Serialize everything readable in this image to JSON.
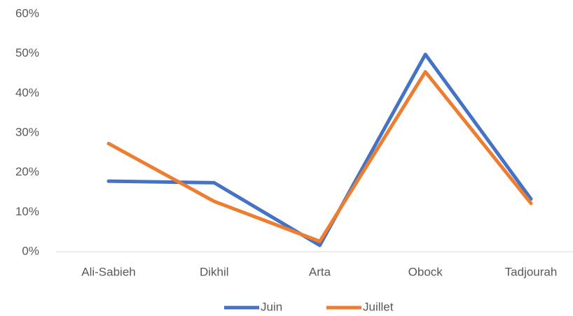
{
  "chart_data": {
    "type": "line",
    "categories": [
      "Ali-Sabieh",
      "Dikhil",
      "Arta",
      "Obock",
      "Tadjourah"
    ],
    "series": [
      {
        "name": "Juin",
        "color": "#4472c4",
        "values": [
          17.8,
          17.4,
          1.6,
          49.8,
          13.3
        ]
      },
      {
        "name": "Juillet",
        "color": "#ed7d31",
        "values": [
          27.3,
          12.7,
          2.6,
          45.4,
          12.2
        ]
      }
    ],
    "ylim": [
      0,
      60
    ],
    "yticks": [
      {
        "value": 0,
        "label": "0%"
      },
      {
        "value": 10,
        "label": "10%"
      },
      {
        "value": 20,
        "label": "20%"
      },
      {
        "value": 30,
        "label": "30%"
      },
      {
        "value": 40,
        "label": "40%"
      },
      {
        "value": 50,
        "label": "50%"
      },
      {
        "value": 60,
        "label": "60%"
      }
    ],
    "grid": false,
    "legend": "bottom"
  }
}
